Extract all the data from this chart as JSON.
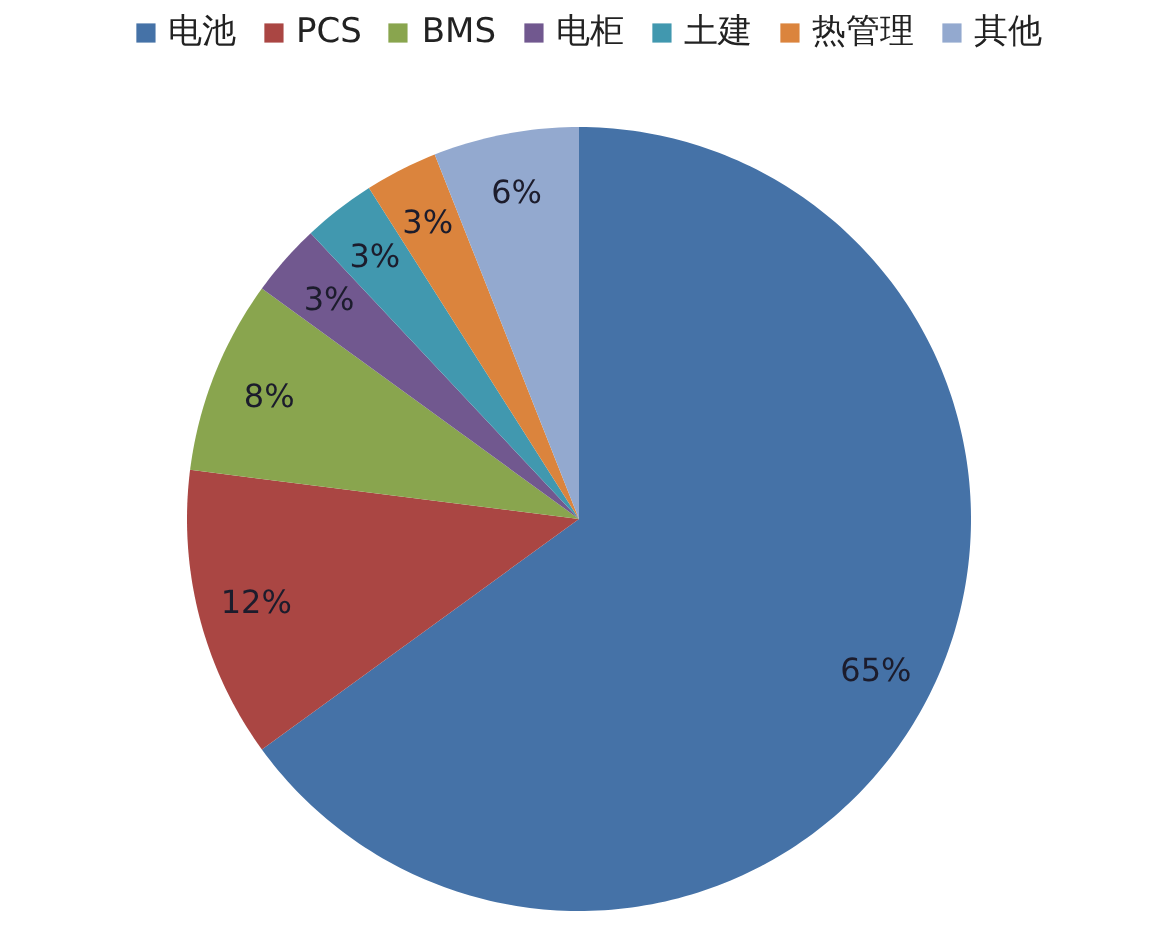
{
  "chart_data": {
    "type": "pie",
    "categories": [
      "电池",
      "PCS",
      "BMS",
      "电柜",
      "土建",
      "热管理",
      "其他"
    ],
    "values": [
      65,
      12,
      8,
      3,
      3,
      3,
      6
    ],
    "colors": [
      "#4572a7",
      "#aa4643",
      "#89a54e",
      "#71588f",
      "#4198af",
      "#db843d",
      "#93a9cf"
    ],
    "value_labels": [
      "65%",
      "12%",
      "8%",
      "3%",
      "3%",
      "3%",
      "6%"
    ],
    "legend": "top"
  }
}
